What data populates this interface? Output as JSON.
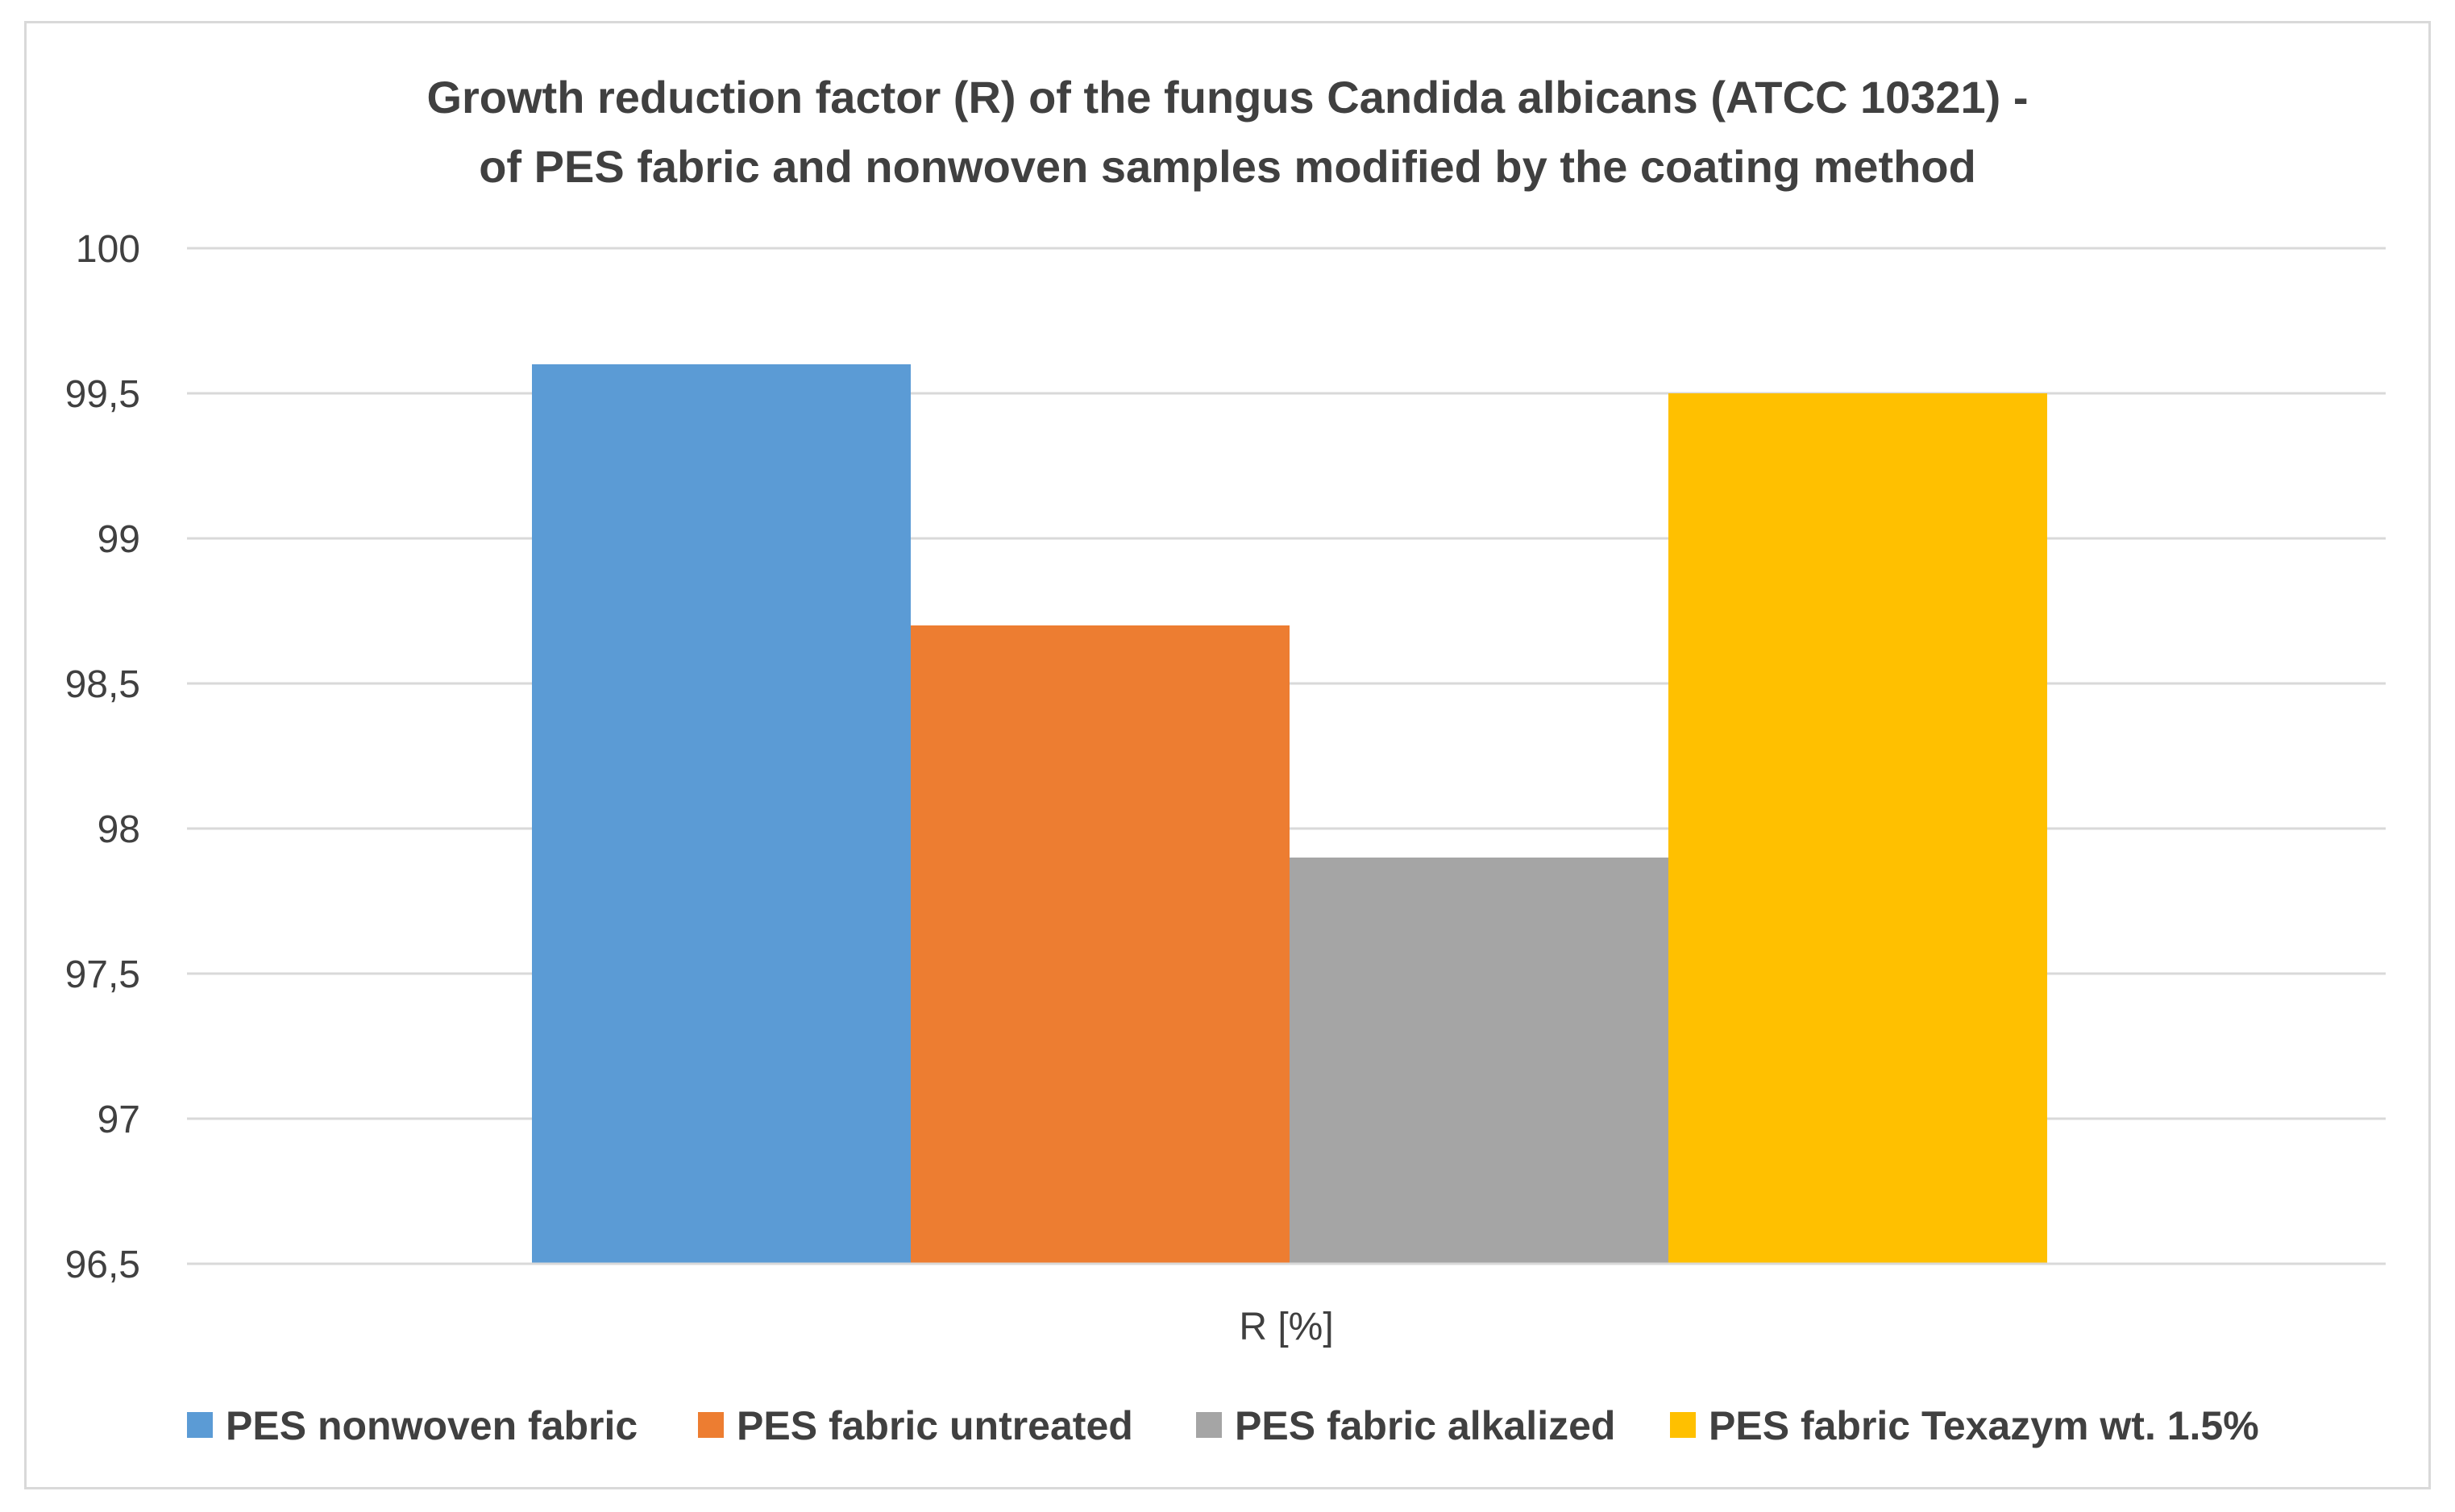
{
  "chart_data": {
    "type": "bar",
    "title_lines": [
      "Growth reduction factor (R) of the fungus Candida albicans (ATCC 10321) -",
      "of PES fabric and nonwoven samples modified by the coating method"
    ],
    "categories": [
      "R [%]"
    ],
    "xlabel": "R [%]",
    "ylabel": "",
    "ylim": [
      96.5,
      100
    ],
    "ytick_values": [
      96.5,
      97,
      97.5,
      98,
      98.5,
      99,
      99.5,
      100
    ],
    "ytick_labels": [
      "96,5",
      "97",
      "97,5",
      "98",
      "98,5",
      "99",
      "99,5",
      "100"
    ],
    "grid": true,
    "legend_position": "bottom",
    "series": [
      {
        "name": "PES nonwoven fabric",
        "values": [
          99.6
        ],
        "color": "#5b9bd5"
      },
      {
        "name": "PES fabric untreated",
        "values": [
          98.7
        ],
        "color": "#ed7d31"
      },
      {
        "name": "PES fabric alkalized",
        "values": [
          97.9
        ],
        "color": "#a5a5a5"
      },
      {
        "name": "PES fabric Texazym wt. 1.5%",
        "values": [
          99.5
        ],
        "color": "#ffc000"
      }
    ]
  }
}
